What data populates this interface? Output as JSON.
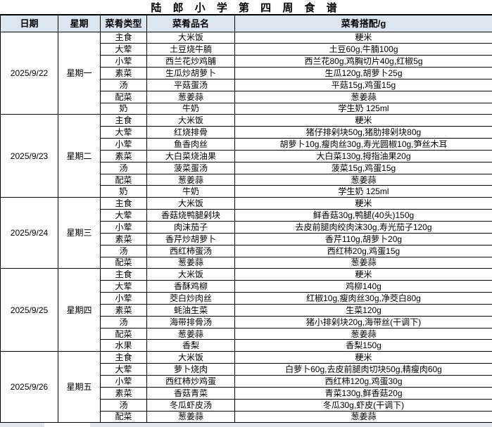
{
  "title": "陆 郎 小 学 第 四 周 食 谱",
  "colors": {
    "header_bg": "#dce6f1",
    "border": "#000000",
    "partial_row_fill": "#dfe6ee",
    "text": "#000000"
  },
  "table": {
    "headers": [
      "日期",
      "星期",
      "菜肴类型",
      "菜肴品名",
      "菜肴搭配/g"
    ],
    "days": [
      {
        "date": "2025/9/22",
        "weekday": "星期一",
        "rows": [
          [
            "主食",
            "大米饭",
            "粳米"
          ],
          [
            "大荤",
            "土豆烧牛腩",
            "土豆60g,牛腩100g"
          ],
          [
            "小荤",
            "西兰花炒鸡脯",
            "西兰花80g,鸡胸切片40g,红椒5g"
          ],
          [
            "素菜",
            "生瓜炒胡萝卜",
            "生瓜120g,胡萝卜25g"
          ],
          [
            "汤",
            "平菇蛋汤",
            "平菇15g,鸡蛋15g"
          ],
          [
            "配菜",
            "葱姜蒜",
            "葱姜蒜"
          ],
          [
            "奶",
            "牛奶",
            "学生奶 125ml"
          ]
        ]
      },
      {
        "date": "2025/9/23",
        "weekday": "星期二",
        "rows": [
          [
            "主食",
            "大米饭",
            "粳米"
          ],
          [
            "大荤",
            "红烧排骨",
            "猪仔排剁块50g,猪肋排剁块80g"
          ],
          [
            "小荤",
            "鱼香肉丝",
            "胡萝卜10g,瘦肉丝30g,寿光圆椒10g,笋丝木耳"
          ],
          [
            "素菜",
            "大白菜烧油果",
            "大白菜130g,拇指油果20g"
          ],
          [
            "汤",
            "菠菜蛋汤",
            "菠菜15g,鸡蛋15g"
          ],
          [
            "配菜",
            "葱姜蒜",
            "葱姜蒜"
          ],
          [
            "奶",
            "牛奶",
            "学生奶 125ml"
          ]
        ]
      },
      {
        "date": "2025/9/24",
        "weekday": "星期三",
        "rows": [
          [
            "主食",
            "大米饭",
            "粳米"
          ],
          [
            "大荤",
            "香菇烧鸭腿剁块",
            "鲜香菇30g,鸭腿(40头)150g"
          ],
          [
            "小荤",
            "肉沫茄子",
            "去皮前腿肉绞肉沫30g,寿光茄子120g"
          ],
          [
            "素菜",
            "香芹炒胡萝卜",
            "香芹110g,胡萝卜20g"
          ],
          [
            "汤",
            "西红柿蛋汤",
            "西红柿20g,鸡蛋15g"
          ],
          [
            "配菜",
            "葱姜蒜",
            "葱姜蒜"
          ]
        ]
      },
      {
        "date": "2025/9/25",
        "weekday": "星期四",
        "rows": [
          [
            "主食",
            "大米饭",
            "粳米"
          ],
          [
            "大荤",
            "香酥鸡柳",
            "鸡柳140g"
          ],
          [
            "小荤",
            "茭白炒肉丝",
            "红椒10g,瘦肉丝30g,净茭白80g"
          ],
          [
            "素菜",
            "蚝油生菜",
            "生菜120g"
          ],
          [
            "汤",
            "海带排骨汤",
            "猪小排剁块20g,海带丝(干调下)"
          ],
          [
            "配菜",
            "葱姜蒜",
            "葱姜蒜"
          ],
          [
            "水果",
            "香梨",
            "香梨150g"
          ]
        ]
      },
      {
        "date": "2025/9/26",
        "weekday": "星期五",
        "rows": [
          [
            "主食",
            "大米饭",
            "粳米"
          ],
          [
            "大荤",
            "萝卜烧肉",
            "白萝卜60g,去皮前腿肉切块50g,精瘦肉60g"
          ],
          [
            "小荤",
            "西红柿炒鸡蛋",
            "西红柿120g,鸡蛋30g"
          ],
          [
            "素菜",
            "香菇青菜",
            "青菜130g,鲜香菇20g"
          ],
          [
            "汤",
            "冬瓜虾皮汤",
            "冬瓜30g,虾皮(干调下)"
          ],
          [
            "配菜",
            "葱姜蒜",
            "葱姜蒜"
          ]
        ]
      }
    ]
  }
}
